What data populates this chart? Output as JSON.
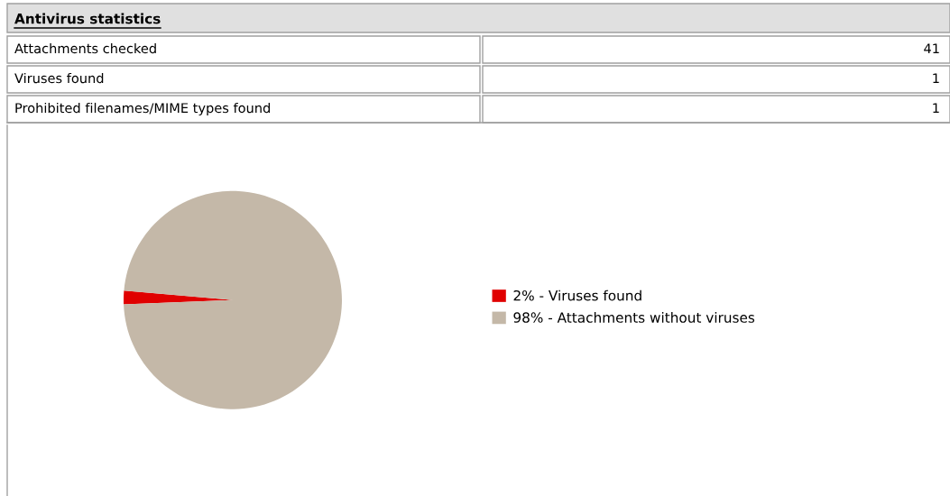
{
  "chart_data": [
    {
      "type": "other",
      "title": "Antivirus statistics",
      "categories": [
        "Attachments checked",
        "Viruses found",
        "Prohibited filenames/MIME types found"
      ],
      "values": [
        41,
        1,
        1
      ],
      "data_labels": true
    },
    {
      "type": "pie",
      "categories": [
        "2% - Viruses found",
        "98% - Attachments without viruses"
      ],
      "values": [
        2,
        98
      ],
      "colors": [
        "#e00000",
        "#c4b8a8"
      ],
      "legend": "right"
    }
  ]
}
